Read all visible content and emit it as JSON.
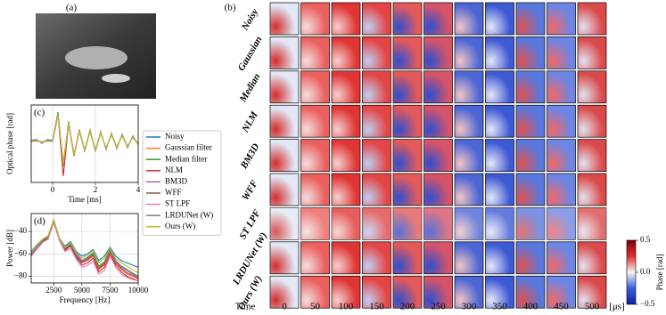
{
  "figure": {
    "photo_label": "(a)",
    "heatmap": {
      "panel_label": "(b)",
      "rows": [
        "Noisy",
        "Gaussian",
        "Median",
        "NLM",
        "BM3D",
        "WFF",
        "ST LPF",
        "LRDUNet (W)",
        "Ours (W)"
      ],
      "columns": [
        "0",
        "50",
        "100",
        "150",
        "200",
        "250",
        "300",
        "350",
        "400",
        "450",
        "500"
      ],
      "time_label": "Time",
      "unit_label": "[μs]",
      "colorbar": {
        "label": "Phase [rad]",
        "lim": [
          -0.5,
          0.5
        ],
        "ticks": [
          {
            "value": -0.5,
            "label": "−0.5"
          },
          {
            "value": 0,
            "label": "0.0"
          },
          {
            "value": 0.5,
            "label": "0.5"
          }
        ]
      }
    }
  },
  "chart_data": [
    {
      "type": "line",
      "panel_label": "(c)",
      "x_label": "Time [ms]",
      "y_label": "Optical phase [rad]",
      "xlim": [
        -1,
        4
      ],
      "ylim": [
        -0.45,
        0.4
      ],
      "xticks": [
        0,
        2,
        4
      ],
      "grid": true,
      "legend": "right",
      "x": [
        -1,
        -0.75,
        -0.5,
        -0.25,
        0,
        0.25,
        0.5,
        0.75,
        1,
        1.25,
        1.5,
        1.75,
        2,
        2.25,
        2.5,
        2.75,
        3,
        3.25,
        3.5,
        3.75,
        4
      ],
      "series": [
        {
          "name": "Noisy",
          "color": "#1f77b4",
          "values": [
            0.01,
            0.02,
            -0.02,
            0.02,
            0.01,
            0.32,
            -0.27,
            0.22,
            -0.16,
            0.13,
            -0.11,
            0.13,
            -0.11,
            0.11,
            -0.09,
            0.09,
            -0.08,
            0.08,
            -0.07,
            0.06,
            -0.03
          ]
        },
        {
          "name": "Gaussian filter",
          "color": "#ff7f0e",
          "values": [
            0,
            0.01,
            -0.01,
            0.01,
            0,
            0.3,
            -0.25,
            0.2,
            -0.15,
            0.12,
            -0.1,
            0.12,
            -0.1,
            0.1,
            -0.08,
            0.08,
            -0.07,
            0.07,
            -0.06,
            0.05,
            -0.03
          ]
        },
        {
          "name": "Median filter",
          "color": "#2ca02c",
          "values": [
            0,
            0.01,
            -0.01,
            0.01,
            0,
            0.31,
            -0.26,
            0.21,
            -0.15,
            0.12,
            -0.1,
            0.12,
            -0.1,
            0.1,
            -0.08,
            0.08,
            -0.07,
            0.07,
            -0.06,
            0.05,
            -0.03
          ]
        },
        {
          "name": "NLM",
          "color": "#d62728",
          "values": [
            0,
            0.01,
            -0.01,
            0.01,
            0,
            0.3,
            -0.38,
            0.2,
            -0.16,
            0.12,
            -0.1,
            0.12,
            -0.1,
            0.1,
            -0.08,
            0.08,
            -0.07,
            0.07,
            -0.06,
            0.05,
            -0.03
          ]
        },
        {
          "name": "BM3D",
          "color": "#9467bd",
          "values": [
            0,
            0.01,
            -0.01,
            0.01,
            0,
            0.3,
            -0.25,
            0.2,
            -0.15,
            0.12,
            -0.1,
            0.12,
            -0.1,
            0.1,
            -0.08,
            0.08,
            -0.07,
            0.07,
            -0.06,
            0.05,
            -0.03
          ]
        },
        {
          "name": "WFF",
          "color": "#8c564b",
          "values": [
            0,
            0.01,
            -0.01,
            0.01,
            0,
            0.29,
            -0.24,
            0.2,
            -0.15,
            0.12,
            -0.1,
            0.11,
            -0.1,
            0.1,
            -0.08,
            0.08,
            -0.07,
            0.07,
            -0.06,
            0.05,
            -0.03
          ]
        },
        {
          "name": "ST LPF",
          "color": "#e377c2",
          "values": [
            0,
            0,
            0,
            0,
            0,
            0.28,
            -0.23,
            0.19,
            -0.14,
            0.11,
            -0.09,
            0.11,
            -0.09,
            0.09,
            -0.07,
            0.07,
            -0.06,
            0.06,
            -0.05,
            0.04,
            -0.02
          ]
        },
        {
          "name": "LRDUNet (W)",
          "color": "#7f7f7f",
          "values": [
            0,
            0.01,
            -0.01,
            0.01,
            0,
            0.3,
            -0.25,
            0.2,
            -0.15,
            0.12,
            -0.1,
            0.12,
            -0.1,
            0.1,
            -0.08,
            0.08,
            -0.07,
            0.07,
            -0.06,
            0.05,
            -0.03
          ]
        },
        {
          "name": "Ours (W)",
          "color": "#bcbd22",
          "values": [
            0,
            0.01,
            -0.01,
            0.01,
            0,
            0.3,
            -0.25,
            0.21,
            -0.15,
            0.12,
            -0.1,
            0.12,
            -0.1,
            0.1,
            -0.08,
            0.08,
            -0.07,
            0.07,
            -0.06,
            0.05,
            -0.03
          ]
        }
      ]
    },
    {
      "type": "line",
      "panel_label": "(d)",
      "x_label": "Frequency [Hz]",
      "y_label": "Power [dB]",
      "xlim": [
        500,
        10000
      ],
      "ylim": [
        -86,
        -24
      ],
      "xticks": [
        2500,
        5000,
        7500,
        10000
      ],
      "yticks": [
        {
          "value": -80,
          "label": "−80"
        },
        {
          "value": -60,
          "label": "−60"
        },
        {
          "value": -40,
          "label": "−40"
        }
      ],
      "grid": true,
      "x": [
        500,
        1000,
        1500,
        2000,
        2500,
        3000,
        3500,
        4000,
        4500,
        5000,
        5500,
        6000,
        6500,
        7000,
        7500,
        8000,
        8500,
        9000,
        9500,
        10000
      ],
      "series": [
        {
          "color": "#1f77b4",
          "values": [
            -58,
            -52,
            -47,
            -44,
            -30,
            -46,
            -53,
            -49,
            -58,
            -62,
            -60,
            -56,
            -66,
            -62,
            -54,
            -62,
            -66,
            -68,
            -70,
            -72
          ]
        },
        {
          "color": "#ff7f0e",
          "values": [
            -60,
            -54,
            -48,
            -45,
            -31,
            -47,
            -56,
            -52,
            -62,
            -68,
            -66,
            -62,
            -74,
            -70,
            -58,
            -68,
            -74,
            -78,
            -80,
            -82
          ]
        },
        {
          "color": "#2ca02c",
          "values": [
            -59,
            -53,
            -48,
            -45,
            -30,
            -46,
            -55,
            -51,
            -60,
            -66,
            -63,
            -59,
            -71,
            -67,
            -56,
            -66,
            -71,
            -74,
            -77,
            -80
          ]
        },
        {
          "color": "#d62728",
          "values": [
            -61,
            -55,
            -49,
            -46,
            -31,
            -47,
            -57,
            -53,
            -63,
            -70,
            -68,
            -64,
            -76,
            -72,
            -60,
            -70,
            -76,
            -80,
            -82,
            -84
          ]
        },
        {
          "color": "#9467bd",
          "values": [
            -60,
            -54,
            -48,
            -45,
            -30,
            -46,
            -55,
            -51,
            -61,
            -67,
            -64,
            -60,
            -72,
            -68,
            -57,
            -67,
            -72,
            -75,
            -78,
            -81
          ]
        },
        {
          "color": "#8c564b",
          "values": [
            -60,
            -55,
            -49,
            -45,
            -31,
            -47,
            -56,
            -52,
            -62,
            -68,
            -65,
            -61,
            -73,
            -69,
            -57,
            -68,
            -73,
            -77,
            -79,
            -82
          ]
        },
        {
          "color": "#e377c2",
          "values": [
            -62,
            -56,
            -50,
            -47,
            -32,
            -48,
            -58,
            -55,
            -65,
            -72,
            -70,
            -67,
            -78,
            -75,
            -62,
            -72,
            -78,
            -81,
            -83,
            -84
          ]
        },
        {
          "color": "#7f7f7f",
          "values": [
            -60,
            -54,
            -48,
            -45,
            -30,
            -46,
            -55,
            -51,
            -60,
            -66,
            -63,
            -60,
            -72,
            -68,
            -57,
            -66,
            -71,
            -74,
            -77,
            -80
          ]
        },
        {
          "color": "#bcbd22",
          "values": [
            -59,
            -53,
            -47,
            -44,
            -29,
            -46,
            -54,
            -50,
            -59,
            -64,
            -61,
            -57,
            -68,
            -64,
            -55,
            -64,
            -68,
            -71,
            -74,
            -77
          ]
        }
      ]
    }
  ]
}
